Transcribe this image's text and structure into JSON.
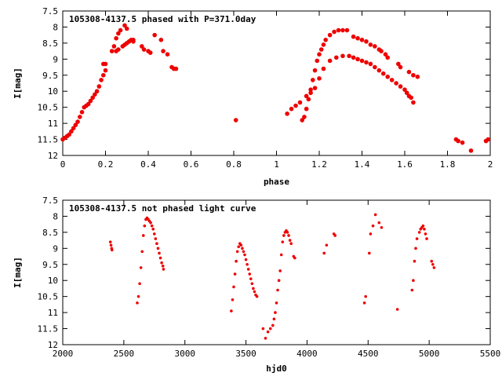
{
  "chart_data": [
    {
      "type": "scatter",
      "title": "105308-4137.5 phased with P=371.0day",
      "xlabel": "phase",
      "ylabel": "I[mag]",
      "xlim": [
        0,
        2
      ],
      "ylim": [
        7.5,
        12
      ],
      "y_inverted": true,
      "x_ticks": [
        0,
        0.2,
        0.4,
        0.6,
        0.8,
        1,
        1.2,
        1.4,
        1.6,
        1.8,
        2
      ],
      "x_tick_labels": [
        "0",
        "0.2",
        "0.4",
        "0.6",
        "0.8",
        "1",
        "1.2",
        "1.4",
        "1.6",
        "1.8",
        "2"
      ],
      "y_ticks": [
        7.5,
        8,
        8.5,
        9,
        9.5,
        10,
        10.5,
        11,
        11.5,
        12
      ],
      "y_tick_labels": [
        "7.5",
        "8",
        "8.5",
        "9",
        "9.5",
        "10",
        "10.5",
        "11",
        "11.5",
        "12"
      ],
      "grid": false,
      "marker_color": "#ee0000",
      "series": [
        {
          "x": [
            0.0,
            0.01,
            0.02,
            0.03,
            0.04,
            0.05,
            0.06,
            0.07,
            0.08,
            0.09,
            0.1,
            0.11,
            0.12,
            0.13,
            0.14,
            0.15,
            0.16,
            0.17,
            0.18,
            0.19,
            0.2,
            0.19,
            0.2,
            0.23,
            0.24,
            0.25,
            0.26,
            0.27,
            0.25,
            0.26,
            0.28,
            0.29,
            0.3,
            0.31,
            0.32,
            0.33,
            0.3,
            0.29,
            0.33,
            0.37,
            0.38,
            0.4,
            0.41,
            0.43,
            0.46,
            0.47,
            0.49,
            0.51,
            0.52,
            0.53,
            0.81,
            1.05,
            1.07,
            1.09,
            1.11,
            1.12,
            1.13,
            1.14,
            1.15,
            1.16,
            1.17,
            1.18,
            1.19,
            1.2,
            1.21,
            1.22,
            1.23,
            1.25,
            1.27,
            1.29,
            1.31,
            1.33,
            1.14,
            1.16,
            1.18,
            1.2,
            1.22,
            1.25,
            1.28,
            1.31,
            1.34,
            1.36,
            1.38,
            1.4,
            1.42,
            1.44,
            1.46,
            1.48,
            1.5,
            1.52,
            1.54,
            1.56,
            1.58,
            1.6,
            1.61,
            1.62,
            1.63,
            1.64,
            1.36,
            1.38,
            1.4,
            1.42,
            1.44,
            1.46,
            1.48,
            1.49,
            1.51,
            1.52,
            1.57,
            1.58,
            1.62,
            1.64,
            1.66,
            1.84,
            1.85,
            1.87,
            1.91,
            1.98,
            1.99
          ],
          "y": [
            11.5,
            11.45,
            11.4,
            11.35,
            11.25,
            11.15,
            11.05,
            10.95,
            10.8,
            10.65,
            10.5,
            10.45,
            10.4,
            10.3,
            10.2,
            10.1,
            10.0,
            9.85,
            9.65,
            9.5,
            9.35,
            9.15,
            9.15,
            8.75,
            8.6,
            8.35,
            8.2,
            8.1,
            8.75,
            8.7,
            8.6,
            8.55,
            8.5,
            8.45,
            8.4,
            8.4,
            8.05,
            7.95,
            8.45,
            8.6,
            8.7,
            8.75,
            8.8,
            8.25,
            8.4,
            8.75,
            8.85,
            9.25,
            9.3,
            9.3,
            10.9,
            10.7,
            10.55,
            10.45,
            10.35,
            10.9,
            10.8,
            10.55,
            10.25,
            9.95,
            9.65,
            9.35,
            9.05,
            8.85,
            8.7,
            8.55,
            8.4,
            8.25,
            8.15,
            8.1,
            8.1,
            8.1,
            10.15,
            10.05,
            9.9,
            9.6,
            9.3,
            9.05,
            8.95,
            8.9,
            8.9,
            8.95,
            9.0,
            9.05,
            9.1,
            9.15,
            9.25,
            9.35,
            9.45,
            9.55,
            9.65,
            9.75,
            9.85,
            9.95,
            10.05,
            10.15,
            10.2,
            10.35,
            8.3,
            8.35,
            8.4,
            8.45,
            8.55,
            8.6,
            8.7,
            8.75,
            8.85,
            8.95,
            9.15,
            9.25,
            9.4,
            9.5,
            9.55,
            11.5,
            11.55,
            11.6,
            11.85,
            11.55,
            11.5
          ]
        }
      ]
    },
    {
      "type": "scatter",
      "title": "105308-4137.5 not phased light curve",
      "xlabel": "hjd0",
      "ylabel": "I[mag]",
      "xlim": [
        2000,
        5500
      ],
      "ylim": [
        7.5,
        12
      ],
      "y_inverted": true,
      "x_ticks": [
        2000,
        2500,
        3000,
        3500,
        4000,
        4500,
        5000,
        5500
      ],
      "x_tick_labels": [
        "2000",
        "2500",
        "3000",
        "3500",
        "4000",
        "4500",
        "5000",
        "5500"
      ],
      "y_ticks": [
        7.5,
        8,
        8.5,
        9,
        9.5,
        10,
        10.5,
        11,
        11.5,
        12
      ],
      "y_tick_labels": [
        "7.5",
        "8",
        "8.5",
        "9",
        "9.5",
        "10",
        "10.5",
        "11",
        "11.5",
        "12"
      ],
      "grid": false,
      "marker_color": "#ee0000",
      "series": [
        {
          "x": [
            2390,
            2395,
            2400,
            2403,
            2610,
            2620,
            2630,
            2640,
            2650,
            2660,
            2670,
            2680,
            2690,
            2700,
            2710,
            2720,
            2730,
            2740,
            2750,
            2760,
            2770,
            2780,
            2790,
            2800,
            2810,
            2820,
            2825,
            3380,
            3390,
            3400,
            3410,
            3420,
            3430,
            3440,
            3450,
            3460,
            3470,
            3480,
            3490,
            3500,
            3510,
            3520,
            3530,
            3540,
            3550,
            3560,
            3570,
            3580,
            3590,
            3640,
            3660,
            3680,
            3700,
            3720,
            3730,
            3740,
            3750,
            3760,
            3770,
            3780,
            3790,
            3800,
            3810,
            3820,
            3830,
            3840,
            3850,
            3860,
            3870,
            3890,
            3900,
            4140,
            4160,
            4220,
            4230,
            4470,
            4480,
            4510,
            4520,
            4540,
            4560,
            4590,
            4610,
            4740,
            4860,
            4870,
            4880,
            4890,
            4900,
            4920,
            4930,
            4940,
            4950,
            4960,
            4970,
            4980,
            5020,
            5030,
            5040
          ],
          "y": [
            8.8,
            8.9,
            9.0,
            9.05,
            10.7,
            10.5,
            10.1,
            9.6,
            9.1,
            8.6,
            8.3,
            8.1,
            8.05,
            8.1,
            8.15,
            8.2,
            8.3,
            8.4,
            8.55,
            8.7,
            8.85,
            9.0,
            9.15,
            9.3,
            9.45,
            9.55,
            9.65,
            10.95,
            10.6,
            10.2,
            9.8,
            9.4,
            9.1,
            8.95,
            8.85,
            8.9,
            9.0,
            9.1,
            9.2,
            9.35,
            9.5,
            9.65,
            9.8,
            9.95,
            10.1,
            10.25,
            10.35,
            10.45,
            10.5,
            11.5,
            11.8,
            11.6,
            11.5,
            11.4,
            11.2,
            11.0,
            10.7,
            10.3,
            10.0,
            9.7,
            9.2,
            8.8,
            8.6,
            8.5,
            8.45,
            8.5,
            8.6,
            8.75,
            8.85,
            9.25,
            9.3,
            9.15,
            8.9,
            8.55,
            8.6,
            10.7,
            10.5,
            9.15,
            8.55,
            8.3,
            7.95,
            8.2,
            8.35,
            10.9,
            10.3,
            10.0,
            9.4,
            9.0,
            8.7,
            8.5,
            8.4,
            8.35,
            8.3,
            8.4,
            8.55,
            8.7,
            9.4,
            9.5,
            9.6
          ]
        }
      ]
    }
  ]
}
